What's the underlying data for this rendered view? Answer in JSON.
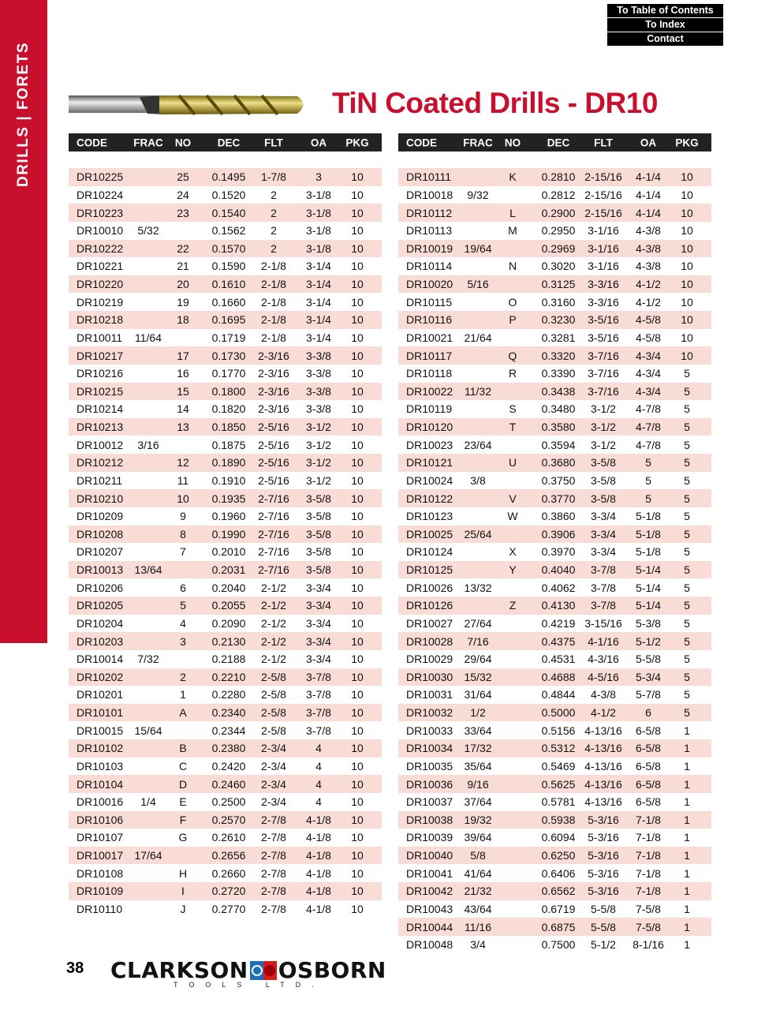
{
  "sidebar": {
    "label": "DRILLS  |  FORETS"
  },
  "nav": {
    "toc": "To Table of Contents",
    "index": "To Index",
    "contact": "Contact"
  },
  "title": "TiN Coated Drills - DR10",
  "columns": [
    "CODE",
    "FRAC",
    "NO",
    "DEC",
    "FLT",
    "OA",
    "PKG"
  ],
  "colors": {
    "accent": "#c8102e",
    "stripe": "#f9dcd5",
    "header": "#222222"
  },
  "left_table": [
    [
      "DR10225",
      "",
      "25",
      "0.1495",
      "1-7/8",
      "3",
      "10"
    ],
    [
      "DR10224",
      "",
      "24",
      "0.1520",
      "2",
      "3-1/8",
      "10"
    ],
    [
      "DR10223",
      "",
      "23",
      "0.1540",
      "2",
      "3-1/8",
      "10"
    ],
    [
      "DR10010",
      "5/32",
      "",
      "0.1562",
      "2",
      "3-1/8",
      "10"
    ],
    [
      "DR10222",
      "",
      "22",
      "0.1570",
      "2",
      "3-1/8",
      "10"
    ],
    [
      "DR10221",
      "",
      "21",
      "0.1590",
      "2-1/8",
      "3-1/4",
      "10"
    ],
    [
      "DR10220",
      "",
      "20",
      "0.1610",
      "2-1/8",
      "3-1/4",
      "10"
    ],
    [
      "DR10219",
      "",
      "19",
      "0.1660",
      "2-1/8",
      "3-1/4",
      "10"
    ],
    [
      "DR10218",
      "",
      "18",
      "0.1695",
      "2-1/8",
      "3-1/4",
      "10"
    ],
    [
      "DR10011",
      "11/64",
      "",
      "0.1719",
      "2-1/8",
      "3-1/4",
      "10"
    ],
    [
      "DR10217",
      "",
      "17",
      "0.1730",
      "2-3/16",
      "3-3/8",
      "10"
    ],
    [
      "DR10216",
      "",
      "16",
      "0.1770",
      "2-3/16",
      "3-3/8",
      "10"
    ],
    [
      "DR10215",
      "",
      "15",
      "0.1800",
      "2-3/16",
      "3-3/8",
      "10"
    ],
    [
      "DR10214",
      "",
      "14",
      "0.1820",
      "2-3/16",
      "3-3/8",
      "10"
    ],
    [
      "DR10213",
      "",
      "13",
      "0.1850",
      "2-5/16",
      "3-1/2",
      "10"
    ],
    [
      "DR10012",
      "3/16",
      "",
      "0.1875",
      "2-5/16",
      "3-1/2",
      "10"
    ],
    [
      "DR10212",
      "",
      "12",
      "0.1890",
      "2-5/16",
      "3-1/2",
      "10"
    ],
    [
      "DR10211",
      "",
      "11",
      "0.1910",
      "2-5/16",
      "3-1/2",
      "10"
    ],
    [
      "DR10210",
      "",
      "10",
      "0.1935",
      "2-7/16",
      "3-5/8",
      "10"
    ],
    [
      "DR10209",
      "",
      "9",
      "0.1960",
      "2-7/16",
      "3-5/8",
      "10"
    ],
    [
      "DR10208",
      "",
      "8",
      "0.1990",
      "2-7/16",
      "3-5/8",
      "10"
    ],
    [
      "DR10207",
      "",
      "7",
      "0.2010",
      "2-7/16",
      "3-5/8",
      "10"
    ],
    [
      "DR10013",
      "13/64",
      "",
      "0.2031",
      "2-7/16",
      "3-5/8",
      "10"
    ],
    [
      "DR10206",
      "",
      "6",
      "0.2040",
      "2-1/2",
      "3-3/4",
      "10"
    ],
    [
      "DR10205",
      "",
      "5",
      "0.2055",
      "2-1/2",
      "3-3/4",
      "10"
    ],
    [
      "DR10204",
      "",
      "4",
      "0.2090",
      "2-1/2",
      "3-3/4",
      "10"
    ],
    [
      "DR10203",
      "",
      "3",
      "0.2130",
      "2-1/2",
      "3-3/4",
      "10"
    ],
    [
      "DR10014",
      "7/32",
      "",
      "0.2188",
      "2-1/2",
      "3-3/4",
      "10"
    ],
    [
      "DR10202",
      "",
      "2",
      "0.2210",
      "2-5/8",
      "3-7/8",
      "10"
    ],
    [
      "DR10201",
      "",
      "1",
      "0.2280",
      "2-5/8",
      "3-7/8",
      "10"
    ],
    [
      "DR10101",
      "",
      "A",
      "0.2340",
      "2-5/8",
      "3-7/8",
      "10"
    ],
    [
      "DR10015",
      "15/64",
      "",
      "0.2344",
      "2-5/8",
      "3-7/8",
      "10"
    ],
    [
      "DR10102",
      "",
      "B",
      "0.2380",
      "2-3/4",
      "4",
      "10"
    ],
    [
      "DR10103",
      "",
      "C",
      "0.2420",
      "2-3/4",
      "4",
      "10"
    ],
    [
      "DR10104",
      "",
      "D",
      "0.2460",
      "2-3/4",
      "4",
      "10"
    ],
    [
      "DR10016",
      "1/4",
      "E",
      "0.2500",
      "2-3/4",
      "4",
      "10"
    ],
    [
      "DR10106",
      "",
      "F",
      "0.2570",
      "2-7/8",
      "4-1/8",
      "10"
    ],
    [
      "DR10107",
      "",
      "G",
      "0.2610",
      "2-7/8",
      "4-1/8",
      "10"
    ],
    [
      "DR10017",
      "17/64",
      "",
      "0.2656",
      "2-7/8",
      "4-1/8",
      "10"
    ],
    [
      "DR10108",
      "",
      "H",
      "0.2660",
      "2-7/8",
      "4-1/8",
      "10"
    ],
    [
      "DR10109",
      "",
      "I",
      "0.2720",
      "2-7/8",
      "4-1/8",
      "10"
    ],
    [
      "DR10110",
      "",
      "J",
      "0.2770",
      "2-7/8",
      "4-1/8",
      "10"
    ]
  ],
  "right_table": [
    [
      "DR10111",
      "",
      "K",
      "0.2810",
      "2-15/16",
      "4-1/4",
      "10"
    ],
    [
      "DR10018",
      "9/32",
      "",
      "0.2812",
      "2-15/16",
      "4-1/4",
      "10"
    ],
    [
      "DR10112",
      "",
      "L",
      "0.2900",
      "2-15/16",
      "4-1/4",
      "10"
    ],
    [
      "DR10113",
      "",
      "M",
      "0.2950",
      "3-1/16",
      "4-3/8",
      "10"
    ],
    [
      "DR10019",
      "19/64",
      "",
      "0.2969",
      "3-1/16",
      "4-3/8",
      "10"
    ],
    [
      "DR10114",
      "",
      "N",
      "0.3020",
      "3-1/16",
      "4-3/8",
      "10"
    ],
    [
      "DR10020",
      "5/16",
      "",
      "0.3125",
      "3-3/16",
      "4-1/2",
      "10"
    ],
    [
      "DR10115",
      "",
      "O",
      "0.3160",
      "3-3/16",
      "4-1/2",
      "10"
    ],
    [
      "DR10116",
      "",
      "P",
      "0.3230",
      "3-5/16",
      "4-5/8",
      "10"
    ],
    [
      "DR10021",
      "21/64",
      "",
      "0.3281",
      "3-5/16",
      "4-5/8",
      "10"
    ],
    [
      "DR10117",
      "",
      "Q",
      "0.3320",
      "3-7/16",
      "4-3/4",
      "10"
    ],
    [
      "DR10118",
      "",
      "R",
      "0.3390",
      "3-7/16",
      "4-3/4",
      "5"
    ],
    [
      "DR10022",
      "11/32",
      "",
      "0.3438",
      "3-7/16",
      "4-3/4",
      "5"
    ],
    [
      "DR10119",
      "",
      "S",
      "0.3480",
      "3-1/2",
      "4-7/8",
      "5"
    ],
    [
      "DR10120",
      "",
      "T",
      "0.3580",
      "3-1/2",
      "4-7/8",
      "5"
    ],
    [
      "DR10023",
      "23/64",
      "",
      "0.3594",
      "3-1/2",
      "4-7/8",
      "5"
    ],
    [
      "DR10121",
      "",
      "U",
      "0.3680",
      "3-5/8",
      "5",
      "5"
    ],
    [
      "DR10024",
      "3/8",
      "",
      "0.3750",
      "3-5/8",
      "5",
      "5"
    ],
    [
      "DR10122",
      "",
      "V",
      "0.3770",
      "3-5/8",
      "5",
      "5"
    ],
    [
      "DR10123",
      "",
      "W",
      "0.3860",
      "3-3/4",
      "5-1/8",
      "5"
    ],
    [
      "DR10025",
      "25/64",
      "",
      "0.3906",
      "3-3/4",
      "5-1/8",
      "5"
    ],
    [
      "DR10124",
      "",
      "X",
      "0.3970",
      "3-3/4",
      "5-1/8",
      "5"
    ],
    [
      "DR10125",
      "",
      "Y",
      "0.4040",
      "3-7/8",
      "5-1/4",
      "5"
    ],
    [
      "DR10026",
      "13/32",
      "",
      "0.4062",
      "3-7/8",
      "5-1/4",
      "5"
    ],
    [
      "DR10126",
      "",
      "Z",
      "0.4130",
      "3-7/8",
      "5-1/4",
      "5"
    ],
    [
      "DR10027",
      "27/64",
      "",
      "0.4219",
      "3-15/16",
      "5-3/8",
      "5"
    ],
    [
      "DR10028",
      "7/16",
      "",
      "0.4375",
      "4-1/16",
      "5-1/2",
      "5"
    ],
    [
      "DR10029",
      "29/64",
      "",
      "0.4531",
      "4-3/16",
      "5-5/8",
      "5"
    ],
    [
      "DR10030",
      "15/32",
      "",
      "0.4688",
      "4-5/16",
      "5-3/4",
      "5"
    ],
    [
      "DR10031",
      "31/64",
      "",
      "0.4844",
      "4-3/8",
      "5-7/8",
      "5"
    ],
    [
      "DR10032",
      "1/2",
      "",
      "0.5000",
      "4-1/2",
      "6",
      "5"
    ],
    [
      "DR10033",
      "33/64",
      "",
      "0.5156",
      "4-13/16",
      "6-5/8",
      "1"
    ],
    [
      "DR10034",
      "17/32",
      "",
      "0.5312",
      "4-13/16",
      "6-5/8",
      "1"
    ],
    [
      "DR10035",
      "35/64",
      "",
      "0.5469",
      "4-13/16",
      "6-5/8",
      "1"
    ],
    [
      "DR10036",
      "9/16",
      "",
      "0.5625",
      "4-13/16",
      "6-5/8",
      "1"
    ],
    [
      "DR10037",
      "37/64",
      "",
      "0.5781",
      "4-13/16",
      "6-5/8",
      "1"
    ],
    [
      "DR10038",
      "19/32",
      "",
      "0.5938",
      "5-3/16",
      "7-1/8",
      "1"
    ],
    [
      "DR10039",
      "39/64",
      "",
      "0.6094",
      "5-3/16",
      "7-1/8",
      "1"
    ],
    [
      "DR10040",
      "5/8",
      "",
      "0.6250",
      "5-3/16",
      "7-1/8",
      "1"
    ],
    [
      "DR10041",
      "41/64",
      "",
      "0.6406",
      "5-3/16",
      "7-1/8",
      "1"
    ],
    [
      "DR10042",
      "21/32",
      "",
      "0.6562",
      "5-3/16",
      "7-1/8",
      "1"
    ],
    [
      "DR10043",
      "43/64",
      "",
      "0.6719",
      "5-5/8",
      "7-5/8",
      "1"
    ],
    [
      "DR10044",
      "11/16",
      "",
      "0.6875",
      "5-5/8",
      "7-5/8",
      "1"
    ],
    [
      "DR10048",
      "3/4",
      "",
      "0.7500",
      "5-1/2",
      "8-1/16",
      "1"
    ]
  ],
  "footer": {
    "page_number": "38",
    "logo_left": "CLARKSON",
    "logo_right": "OSBORN",
    "logo_sub": "TOOLS LTD."
  }
}
